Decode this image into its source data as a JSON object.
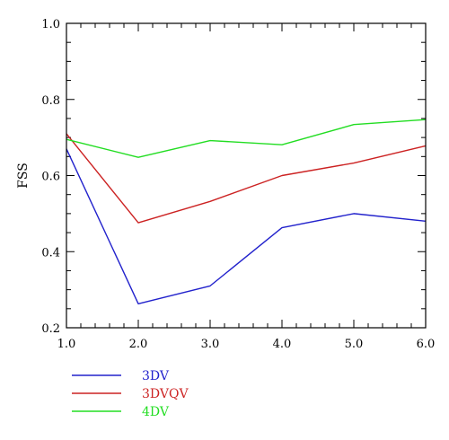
{
  "chart_data": {
    "type": "line",
    "title": "",
    "xlabel": "",
    "ylabel": "FSS",
    "xlim": [
      1.0,
      6.0
    ],
    "ylim": [
      0.2,
      1.0
    ],
    "x": [
      1.0,
      2.0,
      3.0,
      4.0,
      5.0,
      6.0
    ],
    "x_ticks": [
      "1.0",
      "2.0",
      "3.0",
      "4.0",
      "5.0",
      "6.0"
    ],
    "y_ticks": [
      "0.2",
      "0.4",
      "0.6",
      "0.8",
      "1.0"
    ],
    "grid": false,
    "legend_placement": "bottom-left",
    "series": [
      {
        "name": "3DV",
        "color": "#2222cc",
        "values": [
          0.67,
          0.263,
          0.31,
          0.463,
          0.5,
          0.48
        ]
      },
      {
        "name": "3DVQV",
        "color": "#cc2222",
        "values": [
          0.71,
          0.476,
          0.532,
          0.6,
          0.633,
          0.678
        ]
      },
      {
        "name": "4DV",
        "color": "#22dd22",
        "values": [
          0.695,
          0.648,
          0.692,
          0.681,
          0.734,
          0.747
        ]
      }
    ]
  }
}
